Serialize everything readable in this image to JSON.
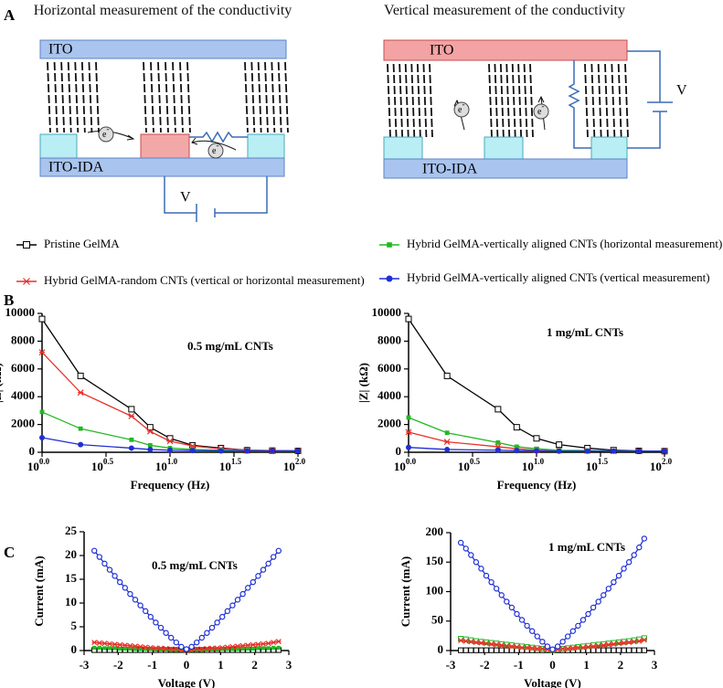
{
  "panel_labels": [
    "A",
    "B",
    "C"
  ],
  "diagrams": [
    {
      "title": "Horizontal measurement of the conductivity",
      "top_electrode": "ITO",
      "bottom_electrode": "ITO-IDA",
      "source": "V",
      "electron": "e-"
    },
    {
      "title": "Vertical measurement of the conductivity",
      "top_electrode": "ITO",
      "bottom_electrode": "ITO-IDA",
      "source": "V",
      "electron": "e-"
    }
  ],
  "chart_data": [
    {
      "type": "line",
      "annotation": "0.5 mg/mL CNTs",
      "x_label": "Frequency (Hz)",
      "y_label": "|Z| (kΩ)",
      "log_x": true,
      "x": [
        1,
        2,
        5,
        7,
        10,
        15,
        25,
        40,
        63,
        100
      ],
      "xlim": [
        1,
        100
      ],
      "ylim": [
        0,
        10000
      ],
      "xticks": [
        {
          "value": 1,
          "label": "10^0.0"
        },
        {
          "value": 3.162,
          "label": "10^0.5"
        },
        {
          "value": 10,
          "label": "10^1.0"
        },
        {
          "value": 31.62,
          "label": "10^1.5"
        },
        {
          "value": 100,
          "label": "10^2.0"
        }
      ],
      "yticks": [
        0,
        2000,
        4000,
        6000,
        8000,
        10000
      ],
      "series": [
        {
          "name": "Pristine GelMA",
          "color": "#000000",
          "marker": "open-square",
          "values": [
            9600,
            5500,
            3100,
            1800,
            1000,
            500,
            300,
            150,
            120,
            100
          ]
        },
        {
          "name": "Hybrid GelMA-random CNTs (vertical or horizontal measurement)",
          "color": "#e8302a",
          "marker": "star",
          "values": [
            7200,
            4300,
            2600,
            1500,
            800,
            450,
            250,
            150,
            120,
            100
          ]
        },
        {
          "name": "Hybrid GelMA-vertically aligned CNTs (horizontal measurement)",
          "color": "#22b822",
          "marker": "filled-square",
          "values": [
            2900,
            1700,
            900,
            500,
            300,
            200,
            150,
            120,
            100,
            100
          ]
        },
        {
          "name": "Hybrid GelMA-vertically aligned CNTs (vertical measurement)",
          "color": "#1f2fd6",
          "marker": "filled-circle",
          "values": [
            1050,
            550,
            300,
            200,
            150,
            120,
            100,
            100,
            100,
            100
          ]
        }
      ]
    },
    {
      "type": "line",
      "annotation": "1 mg/mL CNTs",
      "x_label": "Frequency (Hz)",
      "y_label": "|Z| (kΩ)",
      "log_x": true,
      "x": [
        1,
        2,
        5,
        7,
        10,
        15,
        25,
        40,
        63,
        100
      ],
      "xlim": [
        1,
        100
      ],
      "ylim": [
        0,
        10000
      ],
      "xticks": [
        {
          "value": 1,
          "label": "10^0.0"
        },
        {
          "value": 3.162,
          "label": "10^0.5"
        },
        {
          "value": 10,
          "label": "10^1.0"
        },
        {
          "value": 31.62,
          "label": "10^1.5"
        },
        {
          "value": 100,
          "label": "10^2.0"
        }
      ],
      "yticks": [
        0,
        2000,
        4000,
        6000,
        8000,
        10000
      ],
      "series": [
        {
          "color": "#000000",
          "marker": "open-square",
          "values": [
            9600,
            5500,
            3100,
            1800,
            1000,
            550,
            300,
            150,
            100,
            80
          ]
        },
        {
          "color": "#e8302a",
          "marker": "star",
          "values": [
            1450,
            750,
            400,
            250,
            150,
            120,
            100,
            80,
            80,
            80
          ]
        },
        {
          "color": "#22b822",
          "marker": "filled-square",
          "values": [
            2500,
            1400,
            700,
            400,
            250,
            150,
            120,
            100,
            80,
            80
          ]
        },
        {
          "color": "#1f2fd6",
          "marker": "filled-circle",
          "values": [
            350,
            200,
            150,
            120,
            100,
            80,
            80,
            80,
            80,
            80
          ]
        }
      ]
    },
    {
      "type": "line",
      "annotation": "0.5 mg/mL CNTs",
      "x_label": "Voltage (V)",
      "y_label": "Current (mA)",
      "x": [
        -2.7,
        -2.55,
        -2.4,
        -2.25,
        -2.1,
        -1.95,
        -1.8,
        -1.65,
        -1.5,
        -1.35,
        -1.2,
        -1.05,
        -0.9,
        -0.75,
        -0.6,
        -0.45,
        -0.3,
        -0.15,
        0,
        0.15,
        0.3,
        0.45,
        0.6,
        0.75,
        0.9,
        1.05,
        1.2,
        1.35,
        1.5,
        1.65,
        1.8,
        1.95,
        2.1,
        2.25,
        2.4,
        2.55,
        2.7
      ],
      "xlim": [
        -3,
        3
      ],
      "ylim": [
        0,
        25
      ],
      "xticks": [
        -3,
        -2,
        -1,
        0,
        1,
        2,
        3
      ],
      "yticks": [
        0,
        5,
        10,
        15,
        20,
        25
      ],
      "series": [
        {
          "color": "#000000",
          "marker": "open-square",
          "values": [
            0.1,
            0.1,
            0.1,
            0.1,
            0.1,
            0.1,
            0.1,
            0.1,
            0.1,
            0.1,
            0.1,
            0.1,
            0.1,
            0.1,
            0.1,
            0.1,
            0.1,
            0.1,
            0.1,
            0.1,
            0.1,
            0.1,
            0.1,
            0.1,
            0.1,
            0.1,
            0.1,
            0.1,
            0.1,
            0.1,
            0.1,
            0.1,
            0.1,
            0.1,
            0.1,
            0.1,
            0.1
          ]
        },
        {
          "color": "#22b822",
          "marker": "filled-square",
          "values": [
            0.6,
            0.6,
            0.5,
            0.5,
            0.5,
            0.4,
            0.4,
            0.4,
            0.3,
            0.3,
            0.3,
            0.3,
            0.2,
            0.2,
            0.2,
            0.1,
            0.1,
            0.1,
            0.1,
            0.1,
            0.1,
            0.1,
            0.2,
            0.2,
            0.2,
            0.3,
            0.3,
            0.3,
            0.3,
            0.4,
            0.4,
            0.4,
            0.5,
            0.5,
            0.5,
            0.6,
            0.6
          ]
        },
        {
          "color": "#e8302a",
          "marker": "star",
          "values": [
            1.7,
            1.6,
            1.5,
            1.4,
            1.3,
            1.2,
            1.1,
            1.0,
            0.9,
            0.8,
            0.7,
            0.6,
            0.5,
            0.5,
            0.4,
            0.3,
            0.3,
            0.2,
            0.1,
            0.2,
            0.3,
            0.3,
            0.4,
            0.5,
            0.5,
            0.6,
            0.7,
            0.8,
            0.9,
            1.0,
            1.1,
            1.2,
            1.3,
            1.4,
            1.5,
            1.7,
            1.9
          ]
        },
        {
          "color": "#1f2fd6",
          "marker": "open-circle",
          "values": [
            21,
            19.7,
            18.3,
            17.0,
            15.7,
            14.4,
            13.2,
            11.9,
            10.7,
            9.5,
            8.3,
            7.1,
            5.9,
            4.8,
            3.7,
            2.7,
            1.7,
            0.8,
            0.3,
            0.8,
            1.7,
            2.7,
            3.7,
            4.8,
            5.9,
            7.1,
            8.3,
            9.5,
            10.7,
            11.9,
            13.2,
            14.4,
            15.7,
            17.0,
            18.3,
            19.7,
            21
          ]
        }
      ]
    },
    {
      "type": "line",
      "annotation": "1 mg/mL CNTs",
      "x_label": "Voltage (V)",
      "y_label": "Current (mA)",
      "x": [
        -2.7,
        -2.55,
        -2.4,
        -2.25,
        -2.1,
        -1.95,
        -1.8,
        -1.65,
        -1.5,
        -1.35,
        -1.2,
        -1.05,
        -0.9,
        -0.75,
        -0.6,
        -0.45,
        -0.3,
        -0.15,
        0,
        0.15,
        0.3,
        0.45,
        0.6,
        0.75,
        0.9,
        1.05,
        1.2,
        1.35,
        1.5,
        1.65,
        1.8,
        1.95,
        2.1,
        2.25,
        2.4,
        2.55,
        2.7
      ],
      "xlim": [
        -3,
        3
      ],
      "ylim": [
        0,
        200
      ],
      "xticks": [
        -3,
        -2,
        -1,
        0,
        1,
        2,
        3
      ],
      "yticks": [
        0,
        50,
        100,
        150,
        200
      ],
      "series": [
        {
          "color": "#000000",
          "marker": "open-square",
          "values": [
            0.5,
            0.5,
            0.5,
            0.5,
            0.5,
            0.5,
            0.5,
            0.5,
            0.5,
            0.5,
            0.5,
            0.5,
            0.5,
            0.5,
            0.5,
            0.5,
            0.5,
            0.5,
            0.5,
            0.5,
            0.5,
            0.5,
            0.5,
            0.5,
            0.5,
            0.5,
            0.5,
            0.5,
            0.5,
            0.5,
            0.5,
            0.5,
            0.5,
            0.5,
            0.5,
            0.5,
            0.5
          ]
        },
        {
          "color": "#22b822",
          "marker": "open-square",
          "values": [
            20,
            19,
            17.5,
            16,
            15,
            14,
            13,
            12,
            11,
            10,
            9,
            8,
            7,
            6,
            5,
            4,
            3,
            2,
            1,
            2,
            3,
            4,
            5,
            6,
            7,
            8,
            9,
            10,
            11,
            12,
            13,
            14,
            15,
            16,
            17.5,
            19,
            21
          ]
        },
        {
          "color": "#e8302a",
          "marker": "star",
          "values": [
            17,
            16,
            15,
            14,
            13,
            12,
            11,
            10,
            9,
            8,
            7,
            6,
            5,
            5,
            4,
            3,
            3,
            2,
            1,
            2,
            3,
            3,
            4,
            5,
            5,
            6,
            7,
            8,
            9,
            10,
            11,
            12,
            13,
            14,
            15,
            16,
            18
          ]
        },
        {
          "color": "#1f2fd6",
          "marker": "open-circle",
          "values": [
            183,
            173,
            162,
            150,
            139,
            127,
            116,
            105,
            94,
            83,
            73,
            62,
            52,
            42,
            33,
            24,
            15,
            7,
            2,
            7,
            15,
            24,
            33,
            42,
            52,
            62,
            73,
            83,
            94,
            105,
            116,
            127,
            139,
            150,
            162,
            175,
            190
          ]
        }
      ]
    }
  ]
}
